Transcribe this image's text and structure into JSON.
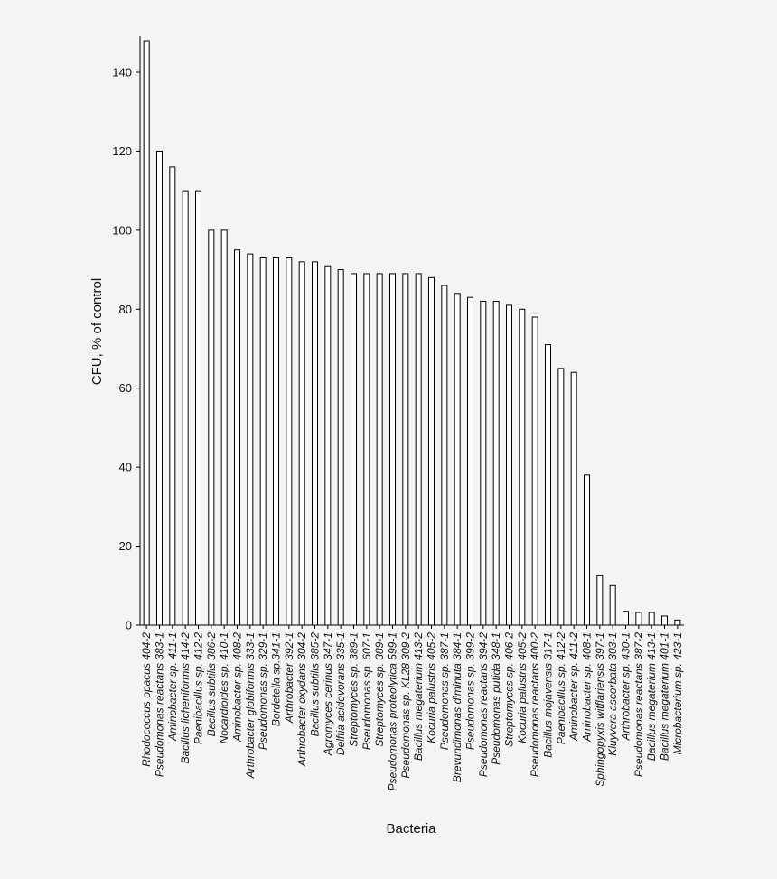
{
  "chart_data": {
    "type": "bar",
    "title": "",
    "xlabel": "Bacteria",
    "ylabel": "CFU, % of control",
    "ylim": [
      0,
      150
    ],
    "yticks": [
      0,
      20,
      40,
      60,
      80,
      100,
      120,
      140
    ],
    "grid": false,
    "legend": "none",
    "bar_fill": "#ffffff",
    "bar_stroke": "#000000",
    "categories": [
      "Rhodococcus opacus 404-2",
      "Pseudomonas reactans 383-1",
      "Aminobacter sp. 411-1",
      "Bacillus licheniformis 414-2",
      "Paenibacillus sp. 412-2",
      "Bacillus subtilis 386-2",
      "Nocardioides sp. 410-1",
      "Aminobacter sp. 408-2",
      "Arthrobacter globiformis 333-1",
      "Pseudomonas sp. 329-1",
      "Bordetella sp.341-1",
      "Arthrobacter 392-1",
      "Arthrobacter oxydans 304-2",
      "Bacillus subtilis 385-2",
      "Agromyces cerinus 347-1",
      "Delftia acidovorans 335-1",
      "Streptomyces sp. 389-1",
      "Pseudomonas sp. 607-1",
      "Streptomyces sp. 389-1",
      "Pseudomonas proteolytica 599-1",
      "Pseudomonas sp. KL28 309-2",
      "Bacillus megaterium 413-2",
      "Kocuria palustris 405-2",
      "Pseudomonas sp. 387-1",
      "Brevundimonas diminuta 384-1",
      "Pseudomonas sp. 399-2",
      "Pseudomonas reactans 394-2",
      "Pseudomonas putida 348-1",
      "Streptomyces sp. 406-2",
      "Kocuria palustris 405-2",
      "Pseudomonas reactans 400-2",
      "Bacillus mojavensis 317-1",
      "Paenibacillus sp. 412-2",
      "Aminobacter sp. 411-2",
      "Aminobacter sp. 408-1",
      "Sphingopyxis witflariensis 397-1",
      "Kluyvera ascorbata 303-1",
      "Arthrobacter sp. 430-1",
      "Pseudomonas reactans 387-2",
      "Bacillus megaterium 413-1",
      "Bacillus megaterium 401-1",
      "Microbacterium sp. 423-1"
    ],
    "values": [
      148,
      120,
      116,
      110,
      110,
      100,
      100,
      95,
      94,
      93,
      93,
      93,
      92,
      92,
      91,
      90,
      89,
      89,
      89,
      89,
      89,
      89,
      88,
      86,
      84,
      83,
      82,
      82,
      81,
      80,
      78,
      71,
      65,
      64,
      38,
      12.5,
      10,
      3.5,
      3.2,
      3.2,
      2.3,
      1.3
    ]
  }
}
